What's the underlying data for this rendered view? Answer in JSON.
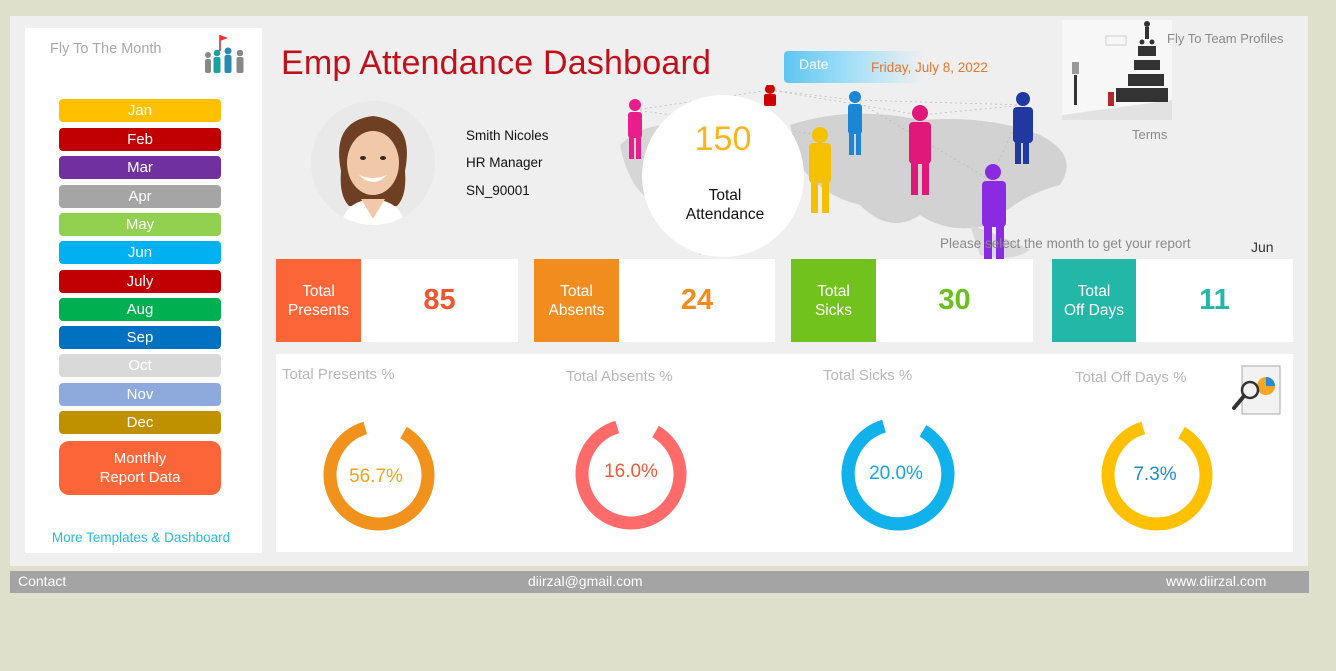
{
  "sidebar": {
    "title": "Fly To The Month",
    "months": [
      {
        "label": "Jan",
        "color": "#ffc000"
      },
      {
        "label": "Feb",
        "color": "#c00000"
      },
      {
        "label": "Mar",
        "color": "#7030a0"
      },
      {
        "label": "Apr",
        "color": "#a5a5a5"
      },
      {
        "label": "May",
        "color": "#92d050"
      },
      {
        "label": "Jun",
        "color": "#00b0f0"
      },
      {
        "label": "July",
        "color": "#c00000"
      },
      {
        "label": "Aug",
        "color": "#00b050"
      },
      {
        "label": "Sep",
        "color": "#0070c0"
      },
      {
        "label": "Oct",
        "color": "#d9d9d9"
      },
      {
        "label": "Nov",
        "color": "#8ea9db"
      },
      {
        "label": "Dec",
        "color": "#bf9000"
      }
    ],
    "report_button": "Monthly\nReport Data",
    "more_link": "More Templates & Dashboard"
  },
  "header": {
    "title": "Emp Attendance Dashboard",
    "date_label": "Date",
    "date_value": "Friday, July 8, 2022",
    "profiles_link": "Fly To Team Profiles",
    "terms_link": "Terms"
  },
  "employee": {
    "name": "Smith Nicoles",
    "role": "HR Manager",
    "id": "SN_90001"
  },
  "total": {
    "value": "150",
    "label": "Total\nAttendance"
  },
  "hint": "Please select the month to get your report",
  "selected_month": "Jun",
  "kpis": [
    {
      "label": "Total\nPresents",
      "value": "85",
      "tag_color": "#fc6538",
      "value_color": "#f0562f"
    },
    {
      "label": "Total\nAbsents",
      "value": "24",
      "tag_color": "#f18c1e",
      "value_color": "#f18c1e"
    },
    {
      "label": "Total\nSicks",
      "value": "30",
      "tag_color": "#71c21c",
      "value_color": "#6bbf1e"
    },
    {
      "label": "Total\nOff Days",
      "value": "11",
      "tag_color": "#23b7a8",
      "value_color": "#23b7a8"
    }
  ],
  "donuts": [
    {
      "title": "Total Presents %",
      "pct": "56.7%",
      "color": "#f0921c",
      "text_color": "#f0a21c"
    },
    {
      "title": "Total Absents %",
      "pct": "16.0%",
      "color": "#ff6b6b",
      "text_color": "#ef5a3a"
    },
    {
      "title": "Total Sicks %",
      "pct": "20.0%",
      "color": "#11b1ec",
      "text_color": "#11a6e3"
    },
    {
      "title": "Total Off Days %",
      "pct": "7.3%",
      "color": "#ffc000",
      "text_color": "#1a8ccc"
    }
  ],
  "footer": {
    "contact": "Contact",
    "email": "diirzal@gmail.com",
    "website": "www.diirzal.com"
  }
}
